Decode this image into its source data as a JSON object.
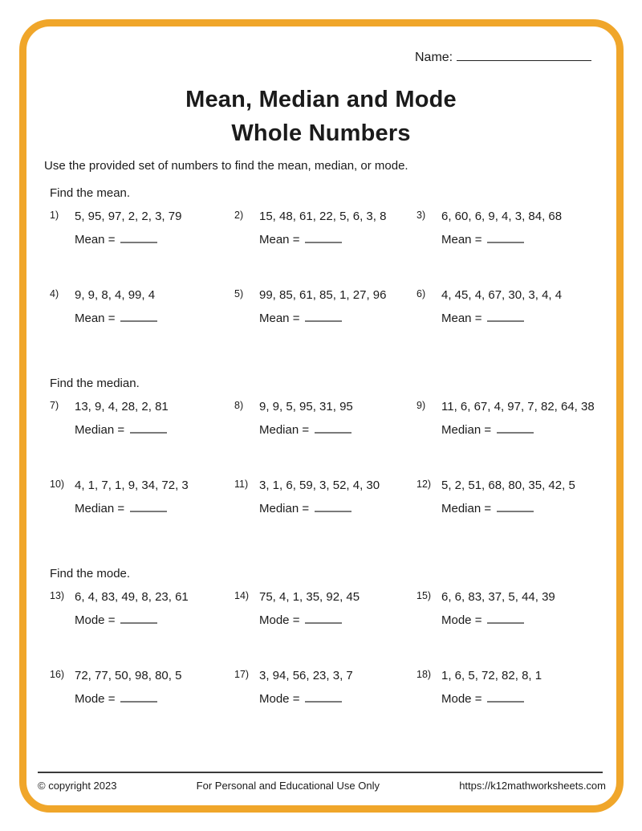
{
  "header": {
    "name_label": "Name:",
    "title_line1": "Mean, Median and Mode",
    "title_line2": "Whole Numbers",
    "instruction": "Use the provided set of numbers to find the mean, median, or mode."
  },
  "sections": [
    {
      "heading": "Find the mean.",
      "answer_label": "Mean =",
      "problems": [
        {
          "num": "1)",
          "numbers": "5, 95, 97, 2, 2, 3, 79"
        },
        {
          "num": "2)",
          "numbers": "15, 48, 61, 22, 5, 6, 3, 8"
        },
        {
          "num": "3)",
          "numbers": "6, 60, 6, 9, 4, 3, 84, 68"
        },
        {
          "num": "4)",
          "numbers": "9, 9, 8, 4, 99, 4"
        },
        {
          "num": "5)",
          "numbers": "99, 85, 61, 85, 1, 27, 96"
        },
        {
          "num": "6)",
          "numbers": "4, 45, 4, 67, 30, 3, 4, 4"
        }
      ]
    },
    {
      "heading": "Find the median.",
      "answer_label": "Median =",
      "problems": [
        {
          "num": "7)",
          "numbers": "13, 9, 4, 28, 2, 81"
        },
        {
          "num": "8)",
          "numbers": "9, 9, 5, 95, 31, 95"
        },
        {
          "num": "9)",
          "numbers": "11, 6, 67, 4, 97, 7, 82, 64, 38"
        },
        {
          "num": "10)",
          "numbers": "4, 1, 7, 1, 9, 34, 72, 3"
        },
        {
          "num": "11)",
          "numbers": "3, 1, 6, 59, 3, 52, 4, 30"
        },
        {
          "num": "12)",
          "numbers": "5, 2, 51, 68, 80, 35, 42, 5"
        }
      ]
    },
    {
      "heading": "Find the mode.",
      "answer_label": "Mode =",
      "problems": [
        {
          "num": "13)",
          "numbers": "6, 4, 83, 49, 8, 23, 61"
        },
        {
          "num": "14)",
          "numbers": "75, 4, 1, 35, 92, 45"
        },
        {
          "num": "15)",
          "numbers": "6, 6, 83, 37, 5, 44, 39"
        },
        {
          "num": "16)",
          "numbers": "72, 77, 50, 98, 80, 5"
        },
        {
          "num": "17)",
          "numbers": "3, 94, 56, 23, 3, 7"
        },
        {
          "num": "18)",
          "numbers": "1, 6, 5, 72, 82, 8, 1"
        }
      ]
    }
  ],
  "footer": {
    "copyright": "© copyright 2023",
    "usage": "For Personal and Educational Use Only",
    "url": "https://k12mathworksheets.com"
  },
  "colors": {
    "border": "#F0A62A",
    "text": "#1b1b1b",
    "blank_line": "#7a7a7a"
  }
}
